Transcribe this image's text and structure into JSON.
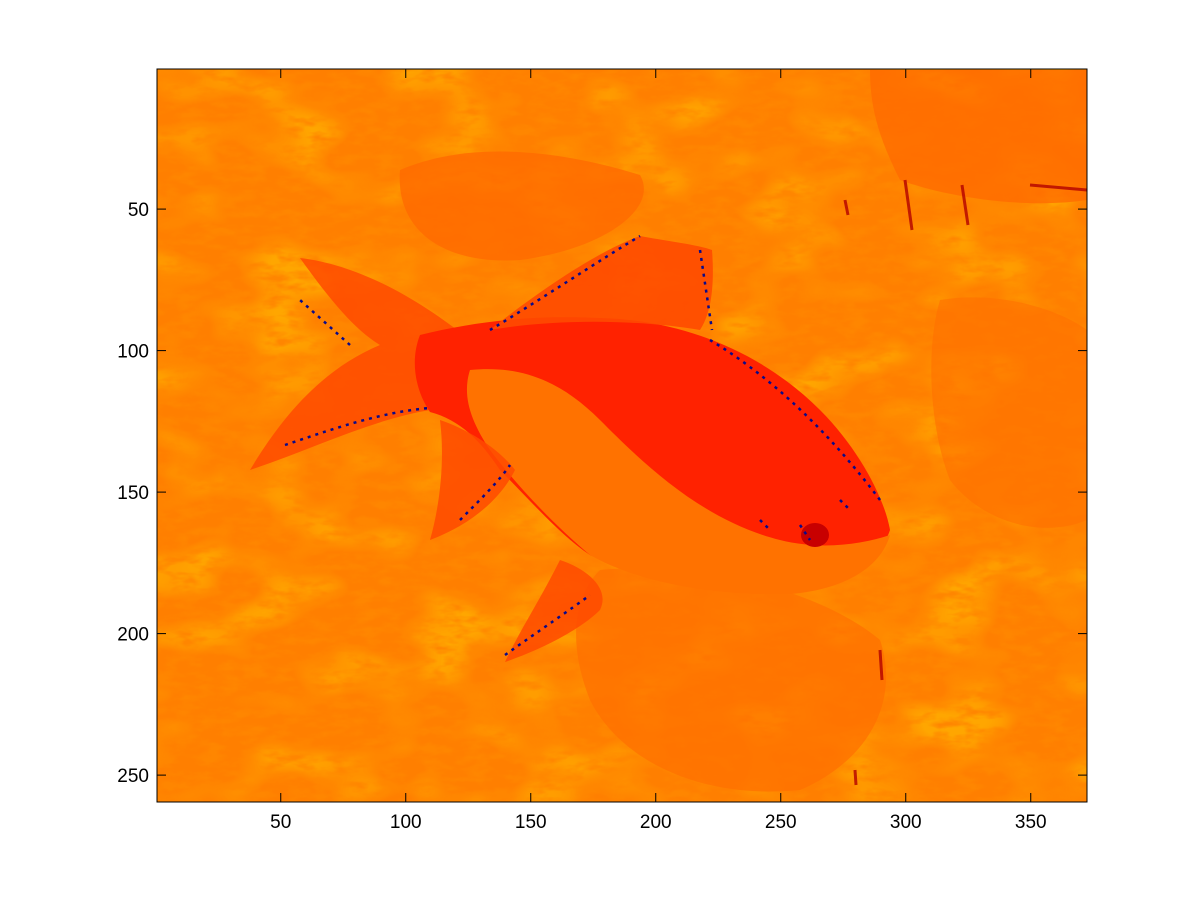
{
  "figure": {
    "background": "#ffffff"
  },
  "chart_data": {
    "type": "heatmap",
    "title": "",
    "xlabel": "",
    "ylabel": "",
    "xlim": [
      0.5,
      372.5
    ],
    "ylim": [
      259.5,
      0.5
    ],
    "y_axis_direction": "reversed",
    "grid": false,
    "legend": "none",
    "x_ticks": [
      50,
      100,
      150,
      200,
      250,
      300,
      350
    ],
    "x_tick_labels": [
      "50",
      "100",
      "150",
      "200",
      "250",
      "300",
      "350"
    ],
    "y_ticks": [
      50,
      100,
      150,
      200,
      250
    ],
    "y_tick_labels": [
      "50",
      "100",
      "150",
      "200",
      "250"
    ],
    "image_size": {
      "columns": 372,
      "rows": 259
    },
    "content": "indexed-color image of a goldfish among aquatic plants",
    "palette": {
      "background_orange": "#ff7f00",
      "light_orange": "#ff8c1a",
      "dark_orange": "#ff6000",
      "red_orange": "#ff3d00",
      "red": "#ff1f00",
      "dark_red": "#c00000",
      "navy": "#0a0a8a"
    }
  }
}
